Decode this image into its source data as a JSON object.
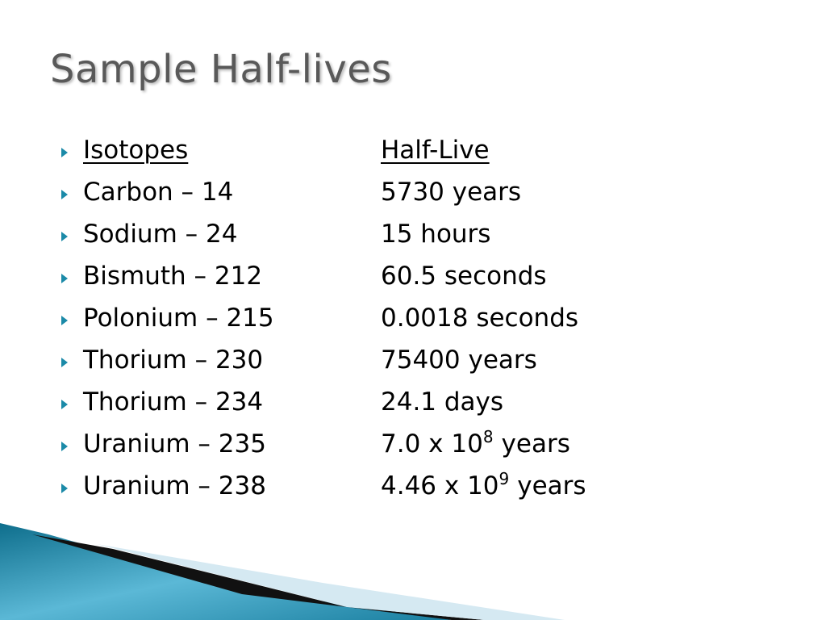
{
  "title": "Sample Half-lives",
  "table": {
    "header": [
      "Isotopes",
      "Half-Live"
    ],
    "rows": [
      [
        "Carbon – 14",
        "5730 years"
      ],
      [
        "Sodium – 24",
        "15 hours"
      ],
      [
        "Bismuth – 212",
        "60.5 seconds"
      ],
      [
        "Polonium – 215",
        "0.0018 seconds"
      ],
      [
        "Thorium – 230",
        "75400 years"
      ],
      [
        "Thorium – 234",
        "24.1 days"
      ],
      [
        "Uranium – 235",
        {
          "base": "7.0 x 10",
          "exponent": "8",
          "unit": "years"
        }
      ],
      [
        "Uranium – 238",
        {
          "base": "4.46 x 10",
          "exponent": "9",
          "unit": "years"
        }
      ]
    ]
  }
}
